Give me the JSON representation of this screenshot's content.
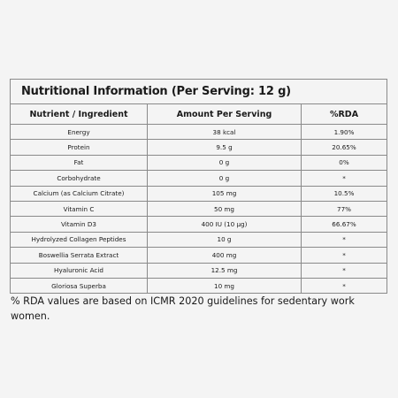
{
  "table": {
    "title": "Nutritional Information (Per Serving: 12 g)",
    "headers": [
      "Nutrient / Ingredient",
      "Amount Per Serving",
      "%RDA"
    ],
    "rows": [
      {
        "nutrient": "Energy",
        "amount": "38 kcal",
        "rda": "1.90%"
      },
      {
        "nutrient": "Protein",
        "amount": "9.5 g",
        "rda": "20.65%"
      },
      {
        "nutrient": "Fat",
        "amount": "0 g",
        "rda": "0%"
      },
      {
        "nutrient": "Corbohydrate",
        "amount": "0 g",
        "rda": "*"
      },
      {
        "nutrient": "Calcium (as Calcium Citrate)",
        "amount": "105 mg",
        "rda": "10.5%"
      },
      {
        "nutrient": "Vitamin C",
        "amount": "50 mg",
        "rda": "77%"
      },
      {
        "nutrient": "Vitamin D3",
        "amount": "400 IU (10 µg)",
        "rda": "66.67%"
      },
      {
        "nutrient": "Hydrolyzed Collagen Peptides",
        "amount": "10 g",
        "rda": "*"
      },
      {
        "nutrient": "Boswellia Serrata Extract",
        "amount": "400 mg",
        "rda": "*"
      },
      {
        "nutrient": "Hyaluronic Acid",
        "amount": "12.5 mg",
        "rda": "*"
      },
      {
        "nutrient": "Gloriosa Superba",
        "amount": "10 mg",
        "rda": "*"
      }
    ]
  },
  "footnote": "% RDA values are based on ICMR 2020 guidelines for sedentary work women."
}
